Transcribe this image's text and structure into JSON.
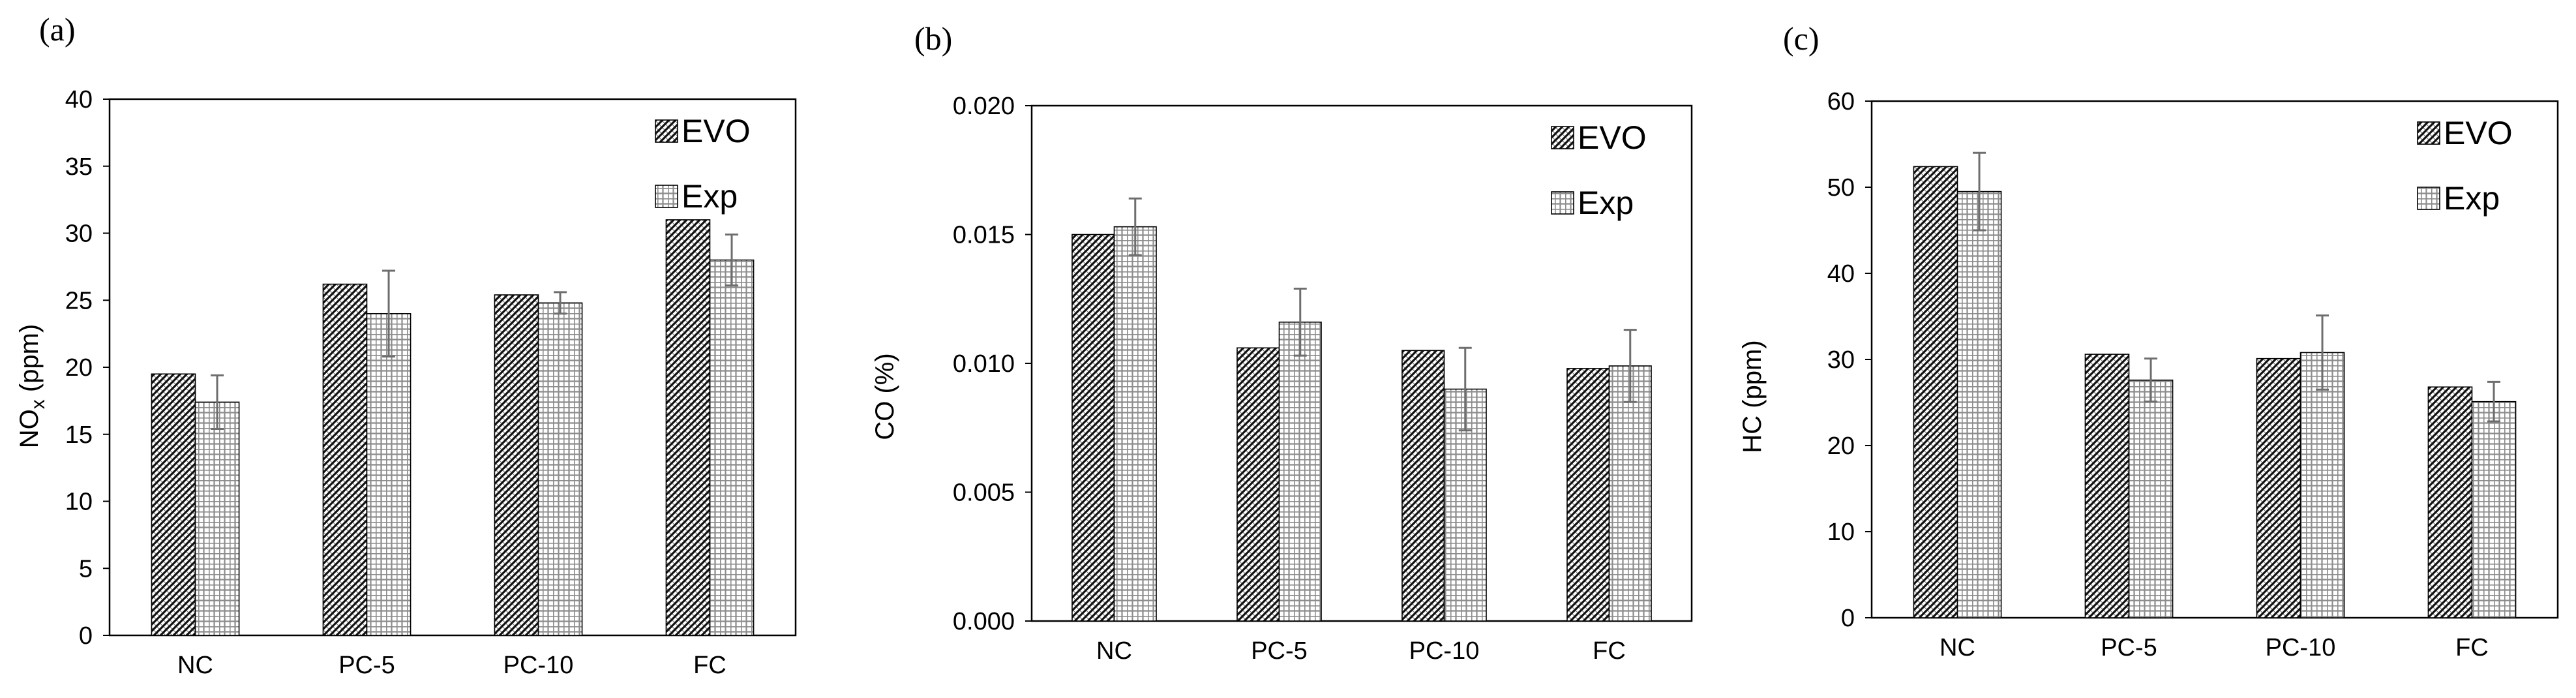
{
  "panels": [
    {
      "label": "(a)",
      "chart_data": {
        "type": "bar",
        "title": "",
        "xlabel": "",
        "ylabel": "NOx (ppm)",
        "ylabel_parts": [
          "NO",
          "x",
          " (ppm)"
        ],
        "categories": [
          "NC",
          "PC-5",
          "PC-10",
          "FC"
        ],
        "series": [
          {
            "name": "EVO",
            "values": [
              19.5,
              26.2,
              25.4,
              31.0
            ],
            "errors": null
          },
          {
            "name": "Exp",
            "values": [
              17.4,
              24.0,
              24.8,
              28.0
            ],
            "errors": [
              2.0,
              3.2,
              0.8,
              1.9
            ]
          }
        ],
        "ylim": [
          0,
          40
        ],
        "yticks": [
          "0",
          "5",
          "10",
          "15",
          "20",
          "25",
          "30",
          "35",
          "40"
        ],
        "grid": false,
        "legend_position": "top-right"
      }
    },
    {
      "label": "(b)",
      "chart_data": {
        "type": "bar",
        "title": "",
        "xlabel": "",
        "ylabel": "CO (%)",
        "ylabel_parts": [
          "CO (%)"
        ],
        "categories": [
          "NC",
          "PC-5",
          "PC-10",
          "FC"
        ],
        "series": [
          {
            "name": "EVO",
            "values": [
              0.015,
              0.0106,
              0.0105,
              0.0098
            ],
            "errors": null
          },
          {
            "name": "Exp",
            "values": [
              0.0153,
              0.0116,
              0.009,
              0.0099
            ],
            "errors": [
              0.0011,
              0.0013,
              0.0016,
              0.0014
            ]
          }
        ],
        "ylim": [
          0,
          0.02
        ],
        "yticks": [
          "0.000",
          "0.005",
          "0.010",
          "0.015",
          "0.020"
        ],
        "grid": false,
        "legend_position": "top-right"
      }
    },
    {
      "label": "(c)",
      "chart_data": {
        "type": "bar",
        "title": "",
        "xlabel": "",
        "ylabel": "HC (ppm)",
        "ylabel_parts": [
          "HC (ppm)"
        ],
        "categories": [
          "NC",
          "PC-5",
          "PC-10",
          "FC"
        ],
        "series": [
          {
            "name": "EVO",
            "values": [
              52.4,
              30.6,
              30.1,
              26.8
            ],
            "errors": null
          },
          {
            "name": "Exp",
            "values": [
              49.5,
              27.6,
              30.8,
              25.1
            ],
            "errors": [
              4.5,
              2.5,
              4.3,
              2.3
            ]
          }
        ],
        "ylim": [
          0,
          60
        ],
        "yticks": [
          "0",
          "10",
          "20",
          "30",
          "40",
          "50",
          "60"
        ],
        "grid": false,
        "legend_position": "top-right"
      }
    }
  ],
  "colors": {
    "axis": "#000000",
    "bar_outline": "#000000",
    "evo_fill": "#ffffff",
    "evo_hatch": "#111111",
    "exp_fill": "#ffffff",
    "exp_grid": "#8c8c8c",
    "error_bar": "#6e6e6e"
  }
}
